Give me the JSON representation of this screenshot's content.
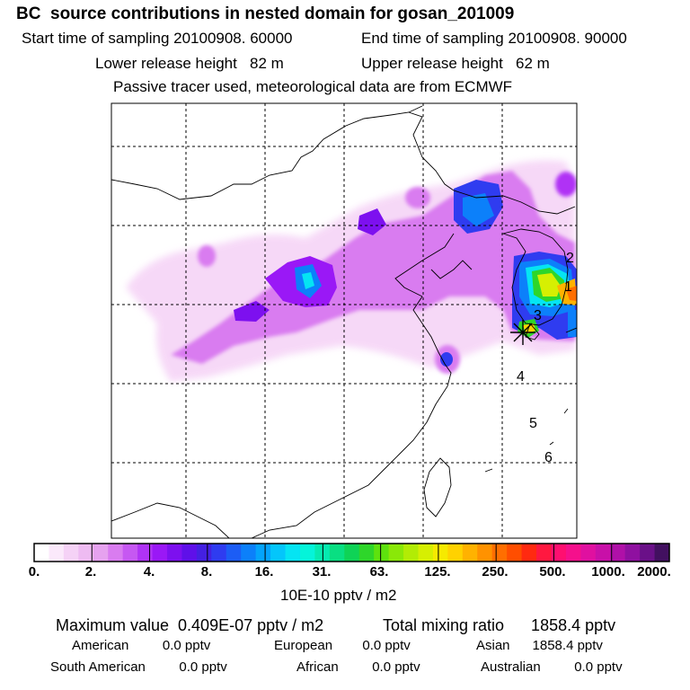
{
  "title": "BC  source contributions in nested domain for gosan_201009",
  "sampling": {
    "start": "Start time of sampling 20100908. 60000",
    "end": "End time of sampling 20100908. 90000"
  },
  "release": {
    "lower": "Lower release height   82 m",
    "upper": "Upper release height   62 m"
  },
  "tracer_note": "Passive tracer used, meteorological data are from ECMWF",
  "map_labels": [
    "1",
    "2",
    "3",
    "4",
    "5",
    "6"
  ],
  "colorbar": {
    "ticks": [
      "0.",
      "2.",
      "4.",
      "8.",
      "16.",
      "31.",
      "63.",
      "125.",
      "250.",
      "500.",
      "1000.",
      "2000."
    ],
    "unit": "10E-10 pptv / m2",
    "colors": [
      "#ffffff",
      "#fbe9fb",
      "#f5d2f6",
      "#eebbf2",
      "#e6a2ef",
      "#d97cf0",
      "#c658f2",
      "#b033f5",
      "#9a18f6",
      "#7d10ef",
      "#5f10e9",
      "#4420e2",
      "#2f3cf0",
      "#1c5df5",
      "#0c80fa",
      "#04a4fb",
      "#04c6fb",
      "#05e4f3",
      "#05f4da",
      "#06eab0",
      "#09df82",
      "#0fd356",
      "#2ed62a",
      "#5ee20e",
      "#8ae808",
      "#b2ec05",
      "#d6ef02",
      "#f6ea00",
      "#ffd200",
      "#ffb200",
      "#ff9200",
      "#ff6e00",
      "#ff4e00",
      "#ff2a10",
      "#ff1840",
      "#ff0f70",
      "#f5108c",
      "#e010a0",
      "#c810a8",
      "#b010a8",
      "#8f10a0",
      "#6a1088",
      "#421060"
    ]
  },
  "footer": {
    "max_value": "Maximum value  0.409E-07 pptv / m2",
    "total": "Total mixing ratio      1858.4 pptv",
    "american": "American         0.0 pptv",
    "european": "European        0.0 pptv",
    "asian": "Asian      1858.4 pptv",
    "south_american": "South American         0.0 pptv",
    "african": "African         0.0 pptv",
    "australian": "Australian         0.0 pptv"
  }
}
